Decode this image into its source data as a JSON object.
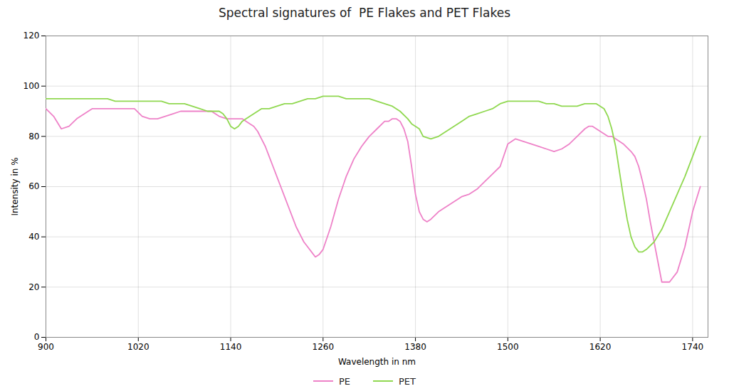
{
  "chart_data": {
    "type": "line",
    "title": "Spectral signatures of  PE Flakes and PET Flakes",
    "xlabel": "Wavelength in nm",
    "ylabel": "Intensity in %",
    "xlim": [
      900,
      1760
    ],
    "ylim": [
      0,
      120
    ],
    "xticks": [
      900,
      1020,
      1140,
      1260,
      1380,
      1500,
      1620,
      1740
    ],
    "yticks": [
      0,
      20,
      40,
      60,
      80,
      100,
      120
    ],
    "grid": true,
    "legend": "bottom",
    "series": [
      {
        "name": "PE",
        "color": "#ee82c8",
        "x": [
          900,
          910,
          920,
          930,
          940,
          950,
          960,
          970,
          975,
          985,
          995,
          1005,
          1015,
          1025,
          1035,
          1045,
          1055,
          1065,
          1075,
          1085,
          1095,
          1105,
          1115,
          1125,
          1135,
          1140,
          1145,
          1150,
          1155,
          1160,
          1165,
          1170,
          1175,
          1180,
          1185,
          1190,
          1195,
          1200,
          1205,
          1210,
          1215,
          1220,
          1225,
          1230,
          1235,
          1240,
          1245,
          1250,
          1255,
          1260,
          1270,
          1280,
          1290,
          1300,
          1310,
          1320,
          1330,
          1340,
          1345,
          1350,
          1355,
          1360,
          1365,
          1370,
          1375,
          1380,
          1385,
          1390,
          1395,
          1400,
          1410,
          1420,
          1430,
          1440,
          1450,
          1460,
          1470,
          1480,
          1490,
          1500,
          1510,
          1520,
          1530,
          1540,
          1550,
          1560,
          1570,
          1580,
          1590,
          1600,
          1605,
          1610,
          1615,
          1620,
          1625,
          1630,
          1635,
          1640,
          1650,
          1660,
          1665,
          1670,
          1675,
          1680,
          1685,
          1690,
          1695,
          1700,
          1710,
          1720,
          1730,
          1740,
          1750
        ],
        "values": [
          91,
          88,
          83,
          84,
          87,
          89,
          91,
          91,
          91,
          91,
          91,
          91,
          91,
          88,
          87,
          87,
          88,
          89,
          90,
          90,
          90,
          90,
          90,
          88,
          87,
          87,
          87,
          87,
          87,
          86,
          85,
          84,
          82,
          79,
          76,
          72,
          68,
          64,
          60,
          56,
          52,
          48,
          44,
          41,
          38,
          36,
          34,
          32,
          33,
          35,
          44,
          55,
          64,
          71,
          76,
          80,
          83,
          86,
          86,
          87,
          87,
          86,
          83,
          78,
          68,
          57,
          50,
          47,
          46,
          47,
          50,
          52,
          54,
          56,
          57,
          59,
          62,
          65,
          68,
          77,
          79,
          78,
          77,
          76,
          75,
          74,
          75,
          77,
          80,
          83,
          84,
          84,
          83,
          82,
          81,
          80,
          80,
          79,
          77,
          74,
          72,
          68,
          62,
          55,
          46,
          38,
          30,
          22,
          22,
          26,
          36,
          50,
          60
        ]
      },
      {
        "name": "PET",
        "color": "#90d850",
        "x": [
          900,
          910,
          920,
          930,
          940,
          950,
          960,
          970,
          980,
          990,
          1000,
          1010,
          1020,
          1030,
          1040,
          1050,
          1060,
          1070,
          1080,
          1090,
          1100,
          1110,
          1120,
          1125,
          1130,
          1135,
          1140,
          1145,
          1150,
          1155,
          1160,
          1165,
          1170,
          1175,
          1180,
          1185,
          1190,
          1200,
          1210,
          1220,
          1230,
          1240,
          1250,
          1260,
          1270,
          1280,
          1290,
          1300,
          1310,
          1320,
          1330,
          1340,
          1350,
          1360,
          1370,
          1375,
          1380,
          1385,
          1390,
          1400,
          1410,
          1420,
          1430,
          1440,
          1450,
          1460,
          1470,
          1480,
          1490,
          1500,
          1505,
          1510,
          1520,
          1530,
          1540,
          1550,
          1560,
          1570,
          1580,
          1590,
          1600,
          1610,
          1615,
          1620,
          1625,
          1630,
          1635,
          1640,
          1645,
          1650,
          1655,
          1660,
          1665,
          1670,
          1675,
          1680,
          1690,
          1700,
          1710,
          1720,
          1730,
          1740,
          1750
        ],
        "values": [
          95,
          95,
          95,
          95,
          95,
          95,
          95,
          95,
          95,
          94,
          94,
          94,
          94,
          94,
          94,
          94,
          93,
          93,
          93,
          92,
          91,
          90,
          90,
          90,
          89,
          87,
          84,
          83,
          84,
          86,
          87,
          88,
          89,
          90,
          91,
          91,
          91,
          92,
          93,
          93,
          94,
          95,
          95,
          96,
          96,
          96,
          95,
          95,
          95,
          95,
          94,
          93,
          92,
          90,
          87,
          85,
          84,
          83,
          80,
          79,
          80,
          82,
          84,
          86,
          88,
          89,
          90,
          91,
          93,
          94,
          94,
          94,
          94,
          94,
          94,
          93,
          93,
          92,
          92,
          92,
          93,
          93,
          93,
          92,
          91,
          88,
          83,
          76,
          66,
          56,
          47,
          40,
          36,
          34,
          34,
          35,
          38,
          43,
          50,
          57,
          64,
          72,
          80
        ]
      }
    ]
  }
}
